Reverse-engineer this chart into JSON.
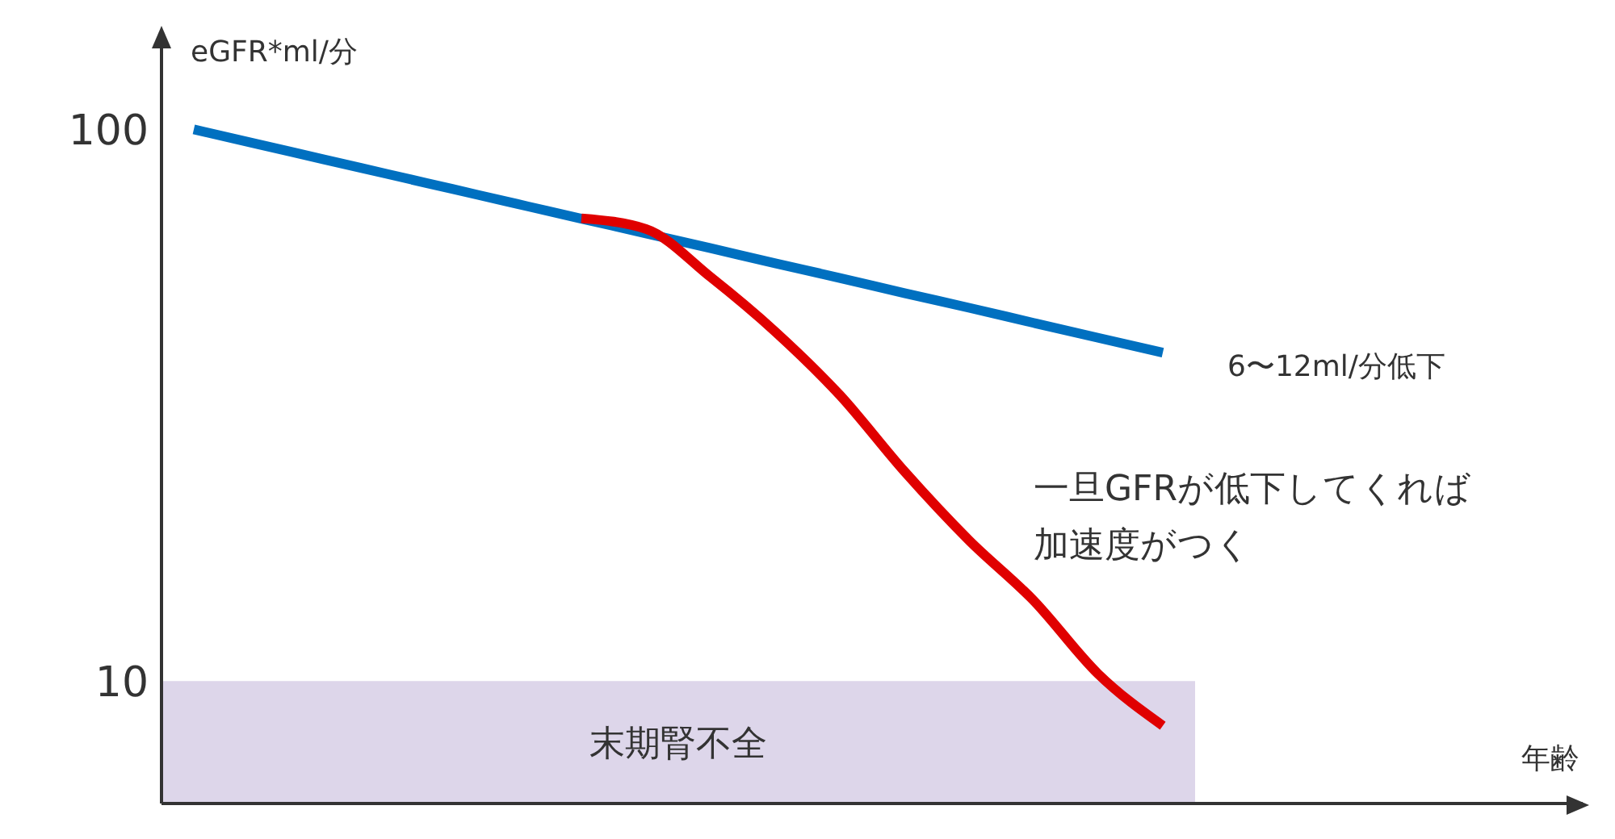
{
  "chart_data": {
    "type": "line",
    "ylabel": "eGFR*ml/分",
    "xlabel": "年齢",
    "categories": [
      null,
      null,
      null,
      null,
      null,
      null,
      null,
      null,
      null,
      null,
      null,
      null,
      null,
      null,
      null,
      null,
      null,
      null,
      null,
      null,
      null,
      null
    ],
    "series": [
      {
        "color": "#0070c0",
        "values": [
          100,
          94.0,
          88.3,
          83.0,
          78.0,
          73.3,
          68.9,
          64.8,
          60.9,
          57.2,
          53.8,
          50.5,
          47.5,
          44.6,
          41.9,
          39.4,
          null,
          null,
          null,
          null,
          null,
          null
        ]
      },
      {
        "color": "#e00000",
        "values": [
          null,
          null,
          null,
          null,
          null,
          null,
          69,
          66,
          54,
          43,
          33,
          24,
          18,
          14,
          10.3,
          8.3,
          null,
          null,
          null,
          null,
          null,
          null
        ]
      }
    ],
    "log": "y",
    "ylim": [
      6,
      150
    ],
    "yticks": [
      10,
      100
    ],
    "grid": false,
    "legend": false,
    "marker": "none",
    "line_style": "solid",
    "bands": [
      {
        "axis": "y",
        "from": 6,
        "to": 10,
        "label": "末期腎不全",
        "color": "#ddd6ea"
      }
    ],
    "annotations": [
      "6〜12ml/分低下",
      "一旦GFRが低下してくれば加速度がつく"
    ]
  }
}
